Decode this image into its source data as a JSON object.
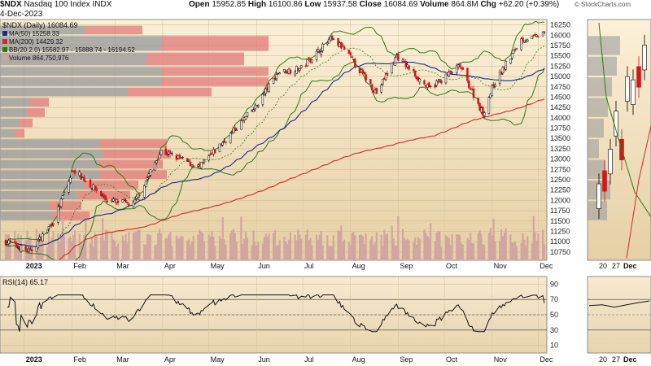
{
  "header": {
    "symbol": "$NDX",
    "name": "Nasdaq 100 Index",
    "exchange": "INDX",
    "date": "4-Dec-2023",
    "open_label": "Open",
    "open": "15952.85",
    "high_label": "High",
    "high": "16100.86",
    "low_label": "Low",
    "low": "15937.58",
    "close_label": "Close",
    "close": "16084.69",
    "volume_label": "Volume",
    "volume": "864.8M",
    "chg_label": "Chg",
    "chg": "+62.20 (+0.39%)",
    "credit": "© StockCharts.com"
  },
  "legend": {
    "main": "$NDX (Daily) 16084.69",
    "ma50": "MA(50) 15258.33",
    "ma200": "MA(200) 14429.32",
    "bb": "BB(20,2.0) 15582.97 - 15888.74 - 16194.52",
    "volume": "Volume 864,750,976",
    "rsi": "RSI(14) 65.17"
  },
  "colors": {
    "panel_top": "#fbf0d8",
    "panel_bottom": "#e6cfa4",
    "up_candle": "#000000",
    "down_candle": "#d01818",
    "ma50": "#1c2a8c",
    "ma200": "#d82828",
    "bb": "#2c7a18",
    "volume_bar": "#d2a6a0",
    "vbp_red": "#e07878",
    "vbp_grey": "#9c9c9c"
  },
  "chart_data": [
    {
      "type": "candlestick",
      "title": "$NDX (Daily) 16084.69",
      "y_ticks": [
        10750,
        11000,
        11250,
        11500,
        11750,
        12000,
        12250,
        12500,
        12750,
        13000,
        13250,
        13500,
        13750,
        14000,
        14250,
        14500,
        14750,
        15000,
        15250,
        15500,
        15750,
        16000,
        16250
      ],
      "ylim": [
        10550,
        16380
      ],
      "x_month_labels": [
        "2023",
        "Feb",
        "Mar",
        "Apr",
        "May",
        "Jun",
        "Jul",
        "Aug",
        "Sep",
        "Oct",
        "Nov",
        "Dec"
      ],
      "close_waypoints": {
        "x": [
          "2022-12-21",
          "2023-01-05",
          "2023-01-20",
          "2023-02-02",
          "2023-02-24",
          "2023-03-13",
          "2023-03-31",
          "2023-04-25",
          "2023-05-31",
          "2023-06-15",
          "2023-06-30",
          "2023-07-19",
          "2023-07-27",
          "2023-08-18",
          "2023-08-31",
          "2023-09-21",
          "2023-10-11",
          "2023-10-26",
          "2023-11-02",
          "2023-11-20",
          "2023-11-30",
          "2023-12-04"
        ],
        "y": [
          11000,
          10750,
          11500,
          12750,
          12000,
          11900,
          13200,
          12800,
          14250,
          15100,
          15200,
          15900,
          15700,
          14600,
          15500,
          14700,
          15250,
          14100,
          14800,
          15900,
          15950,
          16084.69
        ]
      },
      "overlays": [
        "MA(50) 15258.33",
        "MA(200) 14429.32",
        "BB(20,2.0)"
      ],
      "volume_units": "shares",
      "volume_last": 864750976
    },
    {
      "type": "line",
      "title": "RSI(14) 65.17",
      "y_ticks": [
        10,
        30,
        50,
        70,
        90
      ],
      "ylim": [
        0,
        100
      ],
      "reference_lines": [
        30,
        50,
        70
      ],
      "last": 65.17
    }
  ]
}
